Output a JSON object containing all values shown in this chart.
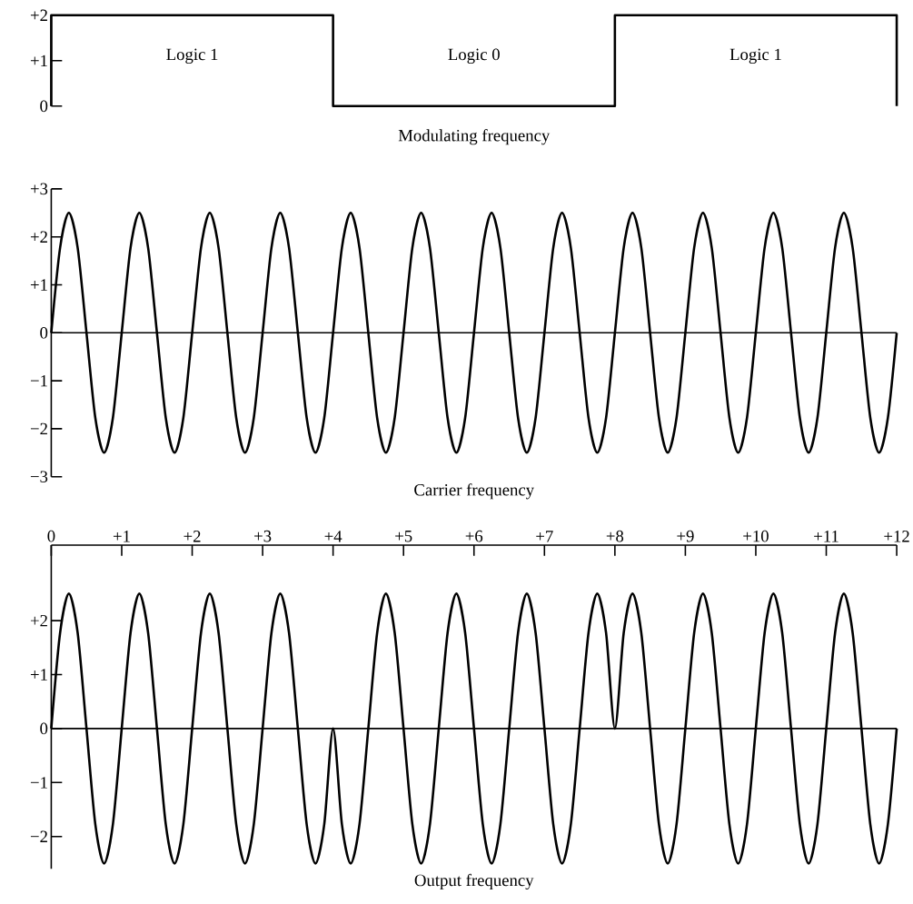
{
  "chart_data": [
    {
      "type": "step",
      "title": "Modulating frequency",
      "x": [
        0,
        0,
        4,
        8,
        12
      ],
      "values": [
        0,
        2,
        0,
        2,
        0
      ],
      "color": "#000000",
      "xlim": [
        0,
        12
      ],
      "ylim": [
        0,
        2
      ],
      "yticks": [
        0,
        {
          "value": 1,
          "label": "+1"
        },
        {
          "value": 2,
          "label": "+2"
        }
      ],
      "tick_labels": "y",
      "annotations": [
        "Logic 1",
        "Logic 0",
        "Logic 1"
      ]
    },
    {
      "type": "line",
      "title": "Carrier frequency",
      "color": "#000000",
      "x": [
        0,
        0.125,
        0.25,
        0.375,
        0.5,
        0.625,
        0.75,
        0.875,
        1,
        1.125,
        1.25,
        1.375,
        1.5,
        1.625,
        1.75,
        1.875,
        2,
        2.125,
        2.25,
        2.375,
        2.5,
        2.625,
        2.75,
        2.875,
        3,
        3.125,
        3.25,
        3.375,
        3.5,
        3.625,
        3.75,
        3.875,
        4,
        4.125,
        4.25,
        4.375,
        4.5,
        4.625,
        4.75,
        4.875,
        5,
        5.125,
        5.25,
        5.375,
        5.5,
        5.625,
        5.75,
        5.875,
        6,
        6.125,
        6.25,
        6.375,
        6.5,
        6.625,
        6.75,
        6.875,
        7,
        7.125,
        7.25,
        7.375,
        7.5,
        7.625,
        7.75,
        7.875,
        8,
        8.125,
        8.25,
        8.375,
        8.5,
        8.625,
        8.75,
        8.875,
        9,
        9.125,
        9.25,
        9.375,
        9.5,
        9.625,
        9.75,
        9.875,
        10,
        10.125,
        10.25,
        10.375,
        10.5,
        10.625,
        10.75,
        10.875,
        11,
        11.125,
        11.25,
        11.375,
        11.5,
        11.625,
        11.75,
        11.875,
        12
      ],
      "values": [
        0,
        1.77,
        2.5,
        1.77,
        0,
        -1.77,
        -2.5,
        -1.77,
        0,
        1.77,
        2.5,
        1.77,
        0,
        -1.77,
        -2.5,
        -1.77,
        0,
        1.77,
        2.5,
        1.77,
        0,
        -1.77,
        -2.5,
        -1.77,
        0,
        1.77,
        2.5,
        1.77,
        0,
        -1.77,
        -2.5,
        -1.77,
        0,
        1.77,
        2.5,
        1.77,
        0,
        -1.77,
        -2.5,
        -1.77,
        0,
        1.77,
        2.5,
        1.77,
        0,
        -1.77,
        -2.5,
        -1.77,
        0,
        1.77,
        2.5,
        1.77,
        0,
        -1.77,
        -2.5,
        -1.77,
        0,
        1.77,
        2.5,
        1.77,
        0,
        -1.77,
        -2.5,
        -1.77,
        0,
        1.77,
        2.5,
        1.77,
        0,
        -1.77,
        -2.5,
        -1.77,
        0,
        1.77,
        2.5,
        1.77,
        0,
        -1.77,
        -2.5,
        -1.77,
        0,
        1.77,
        2.5,
        1.77,
        0,
        -1.77,
        -2.5,
        -1.77,
        0,
        1.77,
        2.5,
        1.77,
        0,
        -1.77,
        -2.5,
        -1.77,
        0
      ],
      "xlim": [
        0,
        12
      ],
      "ylim": [
        -3,
        3
      ],
      "tick_labels": "y",
      "yticks": [
        {
          "value": -3,
          "label": "−3"
        },
        {
          "value": -2,
          "label": "−2"
        },
        {
          "value": -1,
          "label": "−1"
        },
        0,
        {
          "value": 1,
          "label": "+1"
        },
        {
          "value": 2,
          "label": "+2"
        },
        {
          "value": 3,
          "label": "+3"
        }
      ],
      "ref_lines": [
        {
          "axis": "y",
          "value": 0
        }
      ]
    },
    {
      "type": "line",
      "title": "Output frequency",
      "color": "#000000",
      "x": [
        0,
        0.125,
        0.25,
        0.375,
        0.5,
        0.625,
        0.75,
        0.875,
        1,
        1.125,
        1.25,
        1.375,
        1.5,
        1.625,
        1.75,
        1.875,
        2,
        2.125,
        2.25,
        2.375,
        2.5,
        2.625,
        2.75,
        2.875,
        3,
        3.125,
        3.25,
        3.375,
        3.5,
        3.625,
        3.75,
        3.875,
        4,
        4.125,
        4.25,
        4.375,
        4.5,
        4.625,
        4.75,
        4.875,
        5,
        5.125,
        5.25,
        5.375,
        5.5,
        5.625,
        5.75,
        5.875,
        6,
        6.125,
        6.25,
        6.375,
        6.5,
        6.625,
        6.75,
        6.875,
        7,
        7.125,
        7.25,
        7.375,
        7.5,
        7.625,
        7.75,
        7.875,
        8,
        8.125,
        8.25,
        8.375,
        8.5,
        8.625,
        8.75,
        8.875,
        9,
        9.125,
        9.25,
        9.375,
        9.5,
        9.625,
        9.75,
        9.875,
        10,
        10.125,
        10.25,
        10.375,
        10.5,
        10.625,
        10.75,
        10.875,
        11,
        11.125,
        11.25,
        11.375,
        11.5,
        11.625,
        11.75,
        11.875,
        12
      ],
      "values": [
        0,
        1.77,
        2.5,
        1.77,
        0,
        -1.77,
        -2.5,
        -1.77,
        0,
        1.77,
        2.5,
        1.77,
        0,
        -1.77,
        -2.5,
        -1.77,
        0,
        1.77,
        2.5,
        1.77,
        0,
        -1.77,
        -2.5,
        -1.77,
        0,
        1.77,
        2.5,
        1.77,
        0,
        -1.77,
        -2.5,
        -1.77,
        0,
        -1.77,
        -2.5,
        -1.77,
        0,
        1.77,
        2.5,
        1.77,
        0,
        -1.77,
        -2.5,
        -1.77,
        0,
        1.77,
        2.5,
        1.77,
        0,
        -1.77,
        -2.5,
        -1.77,
        0,
        1.77,
        2.5,
        1.77,
        0,
        -1.77,
        -2.5,
        -1.77,
        0,
        1.77,
        2.5,
        1.77,
        0,
        1.77,
        2.5,
        1.77,
        0,
        -1.77,
        -2.5,
        -1.77,
        0,
        1.77,
        2.5,
        1.77,
        0,
        -1.77,
        -2.5,
        -1.77,
        0,
        1.77,
        2.5,
        1.77,
        0,
        -1.77,
        -2.5,
        -1.77,
        0,
        1.77,
        2.5,
        1.77,
        0,
        -1.77,
        -2.5,
        -1.77,
        0
      ],
      "xlim": [
        0,
        12
      ],
      "ylim": [
        -2.6,
        3.4
      ],
      "xticks": [
        0,
        {
          "value": 1,
          "label": "+1"
        },
        {
          "value": 2,
          "label": "+2"
        },
        {
          "value": 3,
          "label": "+3"
        },
        {
          "value": 4,
          "label": "+4"
        },
        {
          "value": 5,
          "label": "+5"
        },
        {
          "value": 6,
          "label": "+6"
        },
        {
          "value": 7,
          "label": "+7"
        },
        {
          "value": 8,
          "label": "+8"
        },
        {
          "value": 9,
          "label": "+9"
        },
        {
          "value": 10,
          "label": "+10"
        },
        {
          "value": 11,
          "label": "+11"
        },
        {
          "value": 12,
          "label": "+12"
        }
      ],
      "yticks": [
        {
          "value": -2,
          "label": "−2"
        },
        {
          "value": -1,
          "label": "−1"
        },
        0,
        {
          "value": 1,
          "label": "+1"
        },
        {
          "value": 2,
          "label": "+2"
        }
      ],
      "ref_lines": [
        {
          "axis": "y",
          "value": 0
        }
      ]
    }
  ]
}
